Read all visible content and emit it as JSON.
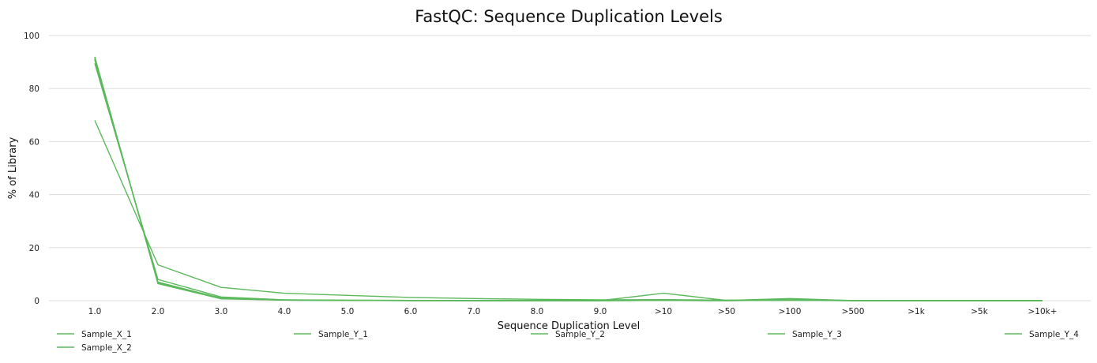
{
  "chart_data": {
    "type": "line",
    "title": "FastQC: Sequence Duplication Levels",
    "xlabel": "Sequence Duplication Level",
    "ylabel": "% of Library",
    "ylim": [
      0,
      100
    ],
    "yticks": [
      "0",
      "20",
      "40",
      "60",
      "80",
      "100"
    ],
    "categories": [
      "1.0",
      "2.0",
      "3.0",
      "4.0",
      "5.0",
      "6.0",
      "7.0",
      "8.0",
      "9.0",
      ">10",
      ">50",
      ">100",
      ">500",
      ">1k",
      ">5k",
      ">10k+"
    ],
    "grid": true,
    "legend_position": "bottom",
    "line_color": "#5cb85c",
    "series": [
      {
        "name": "Sample_X_1",
        "values": [
          68.0,
          13.5,
          5.0,
          2.8,
          2.0,
          1.2,
          0.8,
          0.5,
          0.3,
          0.4,
          0.2,
          0.2,
          0.1,
          0.0,
          0.0,
          0.0
        ]
      },
      {
        "name": "Sample_X_2",
        "values": [
          89.5,
          8.0,
          1.4,
          0.3,
          0.2,
          0.1,
          0.1,
          0.1,
          0.1,
          0.3,
          0.1,
          0.1,
          0.0,
          0.0,
          0.0,
          0.0
        ]
      },
      {
        "name": "Sample_Y_1",
        "values": [
          91.5,
          6.6,
          0.8,
          0.2,
          0.1,
          0.1,
          0.0,
          0.0,
          0.0,
          2.8,
          0.1,
          0.6,
          0.0,
          0.0,
          0.0,
          0.0
        ]
      },
      {
        "name": "Sample_Y_2",
        "values": [
          90.8,
          7.0,
          0.9,
          0.3,
          0.1,
          0.1,
          0.0,
          0.0,
          0.0,
          0.2,
          0.1,
          0.8,
          0.0,
          0.0,
          0.0,
          0.0
        ]
      },
      {
        "name": "Sample_Y_3",
        "values": [
          91.0,
          6.8,
          1.0,
          0.2,
          0.1,
          0.0,
          0.0,
          0.0,
          0.0,
          0.1,
          0.0,
          0.3,
          0.0,
          0.0,
          0.0,
          0.0
        ]
      },
      {
        "name": "Sample_Y_4",
        "values": [
          92.0,
          6.4,
          0.7,
          0.2,
          0.1,
          0.0,
          0.0,
          0.0,
          0.0,
          0.1,
          0.0,
          0.2,
          0.0,
          0.0,
          0.0,
          0.0
        ]
      }
    ]
  }
}
